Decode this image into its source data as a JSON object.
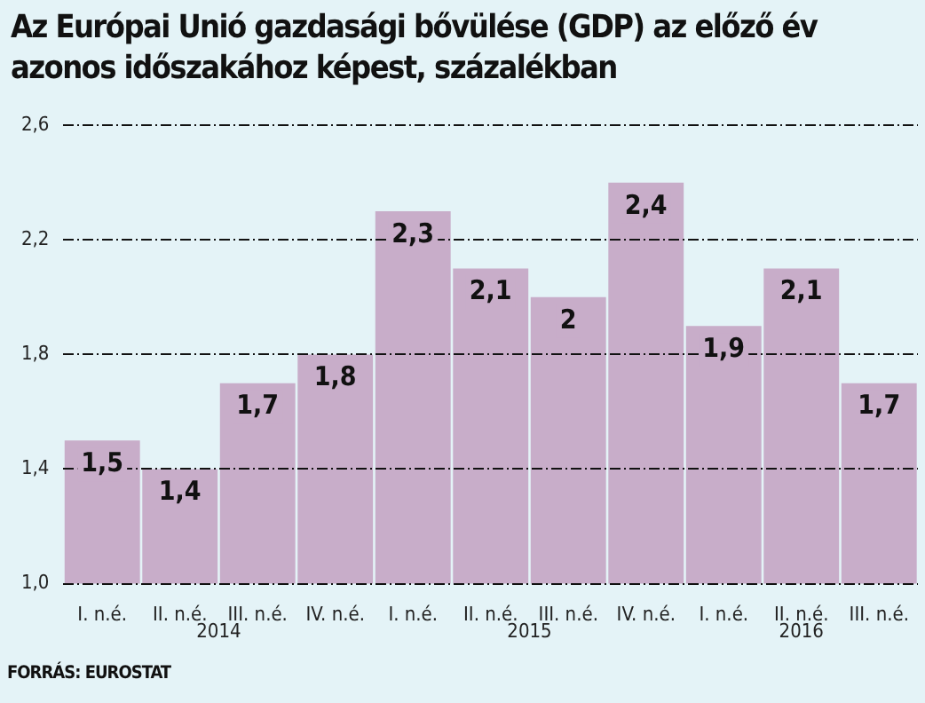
{
  "chart_data": {
    "type": "bar",
    "title": "Az Európai Unió gazdasági bővülése (GDP) az előző év azonos időszakához képest, százalékban",
    "categories": [
      "I. n.é.",
      "II. n.é.",
      "III. n.é.",
      "IV. n.é.",
      "I. n.é.",
      "II. n.é.",
      "III. n.é.",
      "IV. n.é.",
      "I. n.é.",
      "II. n.é.",
      "III. n.é."
    ],
    "values": [
      1.5,
      1.4,
      1.7,
      1.8,
      2.3,
      2.1,
      2.0,
      2.4,
      1.9,
      2.1,
      1.7
    ],
    "value_labels": [
      "1,5",
      "1,4",
      "1,7",
      "1,8",
      "2,3",
      "2,1",
      "2",
      "2,4",
      "1,9",
      "2,1",
      "1,7"
    ],
    "color": "#c8adc9",
    "ylim": [
      1.0,
      2.6
    ],
    "yticks": [
      {
        "value": 1.0,
        "label": "1,0"
      },
      {
        "value": 1.4,
        "label": "1,4"
      },
      {
        "value": 1.8,
        "label": "1,8"
      },
      {
        "value": 2.2,
        "label": "2,2"
      },
      {
        "value": 2.6,
        "label": "2,6"
      }
    ],
    "grid": "y",
    "legend": false,
    "annotations": [
      "2014",
      "2015",
      "2016",
      "FORRÁS: EUROSTAT"
    ]
  }
}
